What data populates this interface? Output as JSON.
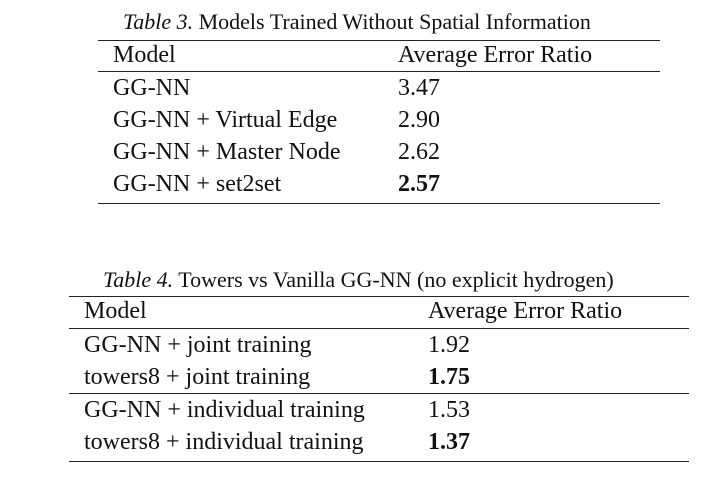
{
  "table3": {
    "caption_label": "Table 3.",
    "caption_text": "Models Trained Without Spatial Information",
    "header": {
      "model": "Model",
      "metric": "Average Error Ratio"
    },
    "rows": [
      {
        "model": "GG-NN",
        "value": "3.47",
        "bold": false
      },
      {
        "model": "GG-NN + Virtual Edge",
        "value": "2.90",
        "bold": false
      },
      {
        "model": "GG-NN + Master Node",
        "value": "2.62",
        "bold": false
      },
      {
        "model": "GG-NN + set2set",
        "value": "2.57",
        "bold": true
      }
    ]
  },
  "table4": {
    "caption_label": "Table 4.",
    "caption_text": "Towers vs Vanilla GG-NN (no explicit hydrogen)",
    "header": {
      "model": "Model",
      "metric": "Average Error Ratio"
    },
    "groups": [
      {
        "rows": [
          {
            "model": "GG-NN + joint training",
            "value": "1.92",
            "bold": false
          },
          {
            "model": "towers8 + joint training",
            "value": "1.75",
            "bold": true
          }
        ]
      },
      {
        "rows": [
          {
            "model": "GG-NN + individual training",
            "value": "1.53",
            "bold": false
          },
          {
            "model": "towers8 + individual training",
            "value": "1.37",
            "bold": true
          }
        ]
      }
    ]
  }
}
